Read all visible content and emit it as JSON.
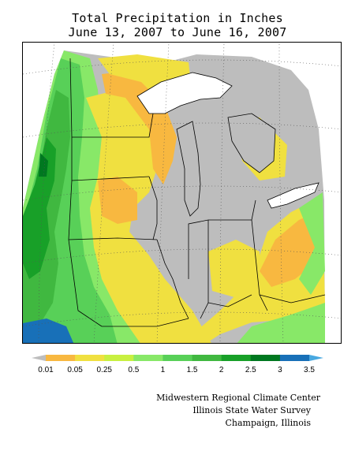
{
  "title": {
    "line1": "Total Precipitation in Inches",
    "line2": "June 13, 2007 to June 16, 2007"
  },
  "legend": {
    "colors": [
      "#bdbdbd",
      "#f8b840",
      "#f0e040",
      "#c8f040",
      "#88e868",
      "#58d058",
      "#40b840",
      "#18a028",
      "#007820",
      "#1870b8",
      "#48a8e0"
    ],
    "labels": [
      "0.01",
      "0.05",
      "0.25",
      "0.5",
      "1",
      "1.5",
      "2",
      "2.5",
      "3",
      "3.5"
    ]
  },
  "credits": {
    "line1": "Midwestern Regional Climate Center",
    "line2": "Illinois State Water Survey",
    "line3": "Champaign, Illinois"
  }
}
